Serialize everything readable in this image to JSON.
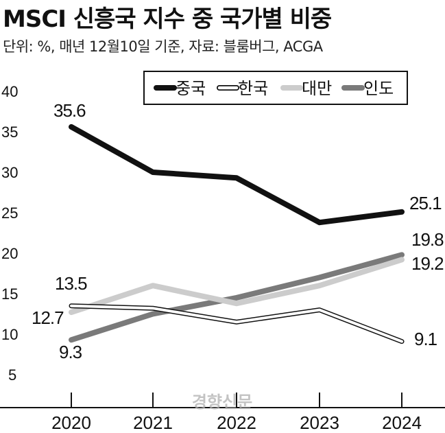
{
  "chart_data": {
    "type": "line",
    "title": "MSCI 신흥국 지수 중 국가별 비중",
    "subtitle": "단위: %, 매년 12월10일 기준, 자료: 블룸버그, ACGA",
    "categories": [
      "2020",
      "2021",
      "2022",
      "2023",
      "2024"
    ],
    "ylim": [
      0,
      40
    ],
    "yticks": [
      "40",
      "35",
      "30",
      "25",
      "20",
      "15",
      "10",
      "5"
    ],
    "series": [
      {
        "name": "중국",
        "values": [
          35.6,
          30.0,
          29.3,
          23.8,
          25.1
        ],
        "color": "#111111",
        "style": "solid"
      },
      {
        "name": "한국",
        "values": [
          13.5,
          13.2,
          11.5,
          13.0,
          9.1
        ],
        "color": "#111111",
        "style": "hollow"
      },
      {
        "name": "대만",
        "values": [
          12.7,
          16.0,
          13.8,
          16.0,
          19.2
        ],
        "color": "#cccccc",
        "style": "solid"
      },
      {
        "name": "인도",
        "values": [
          9.3,
          12.5,
          14.5,
          17.0,
          19.8
        ],
        "color": "#7a7a7a",
        "style": "solid"
      }
    ],
    "labels": {
      "china_start": "35.6",
      "china_end": "25.1",
      "korea_start": "13.5",
      "korea_end": "9.1",
      "taiwan_start": "12.7",
      "taiwan_end": "19.2",
      "india_start": "9.3",
      "india_end": "19.8"
    },
    "watermark": "경향신문"
  }
}
